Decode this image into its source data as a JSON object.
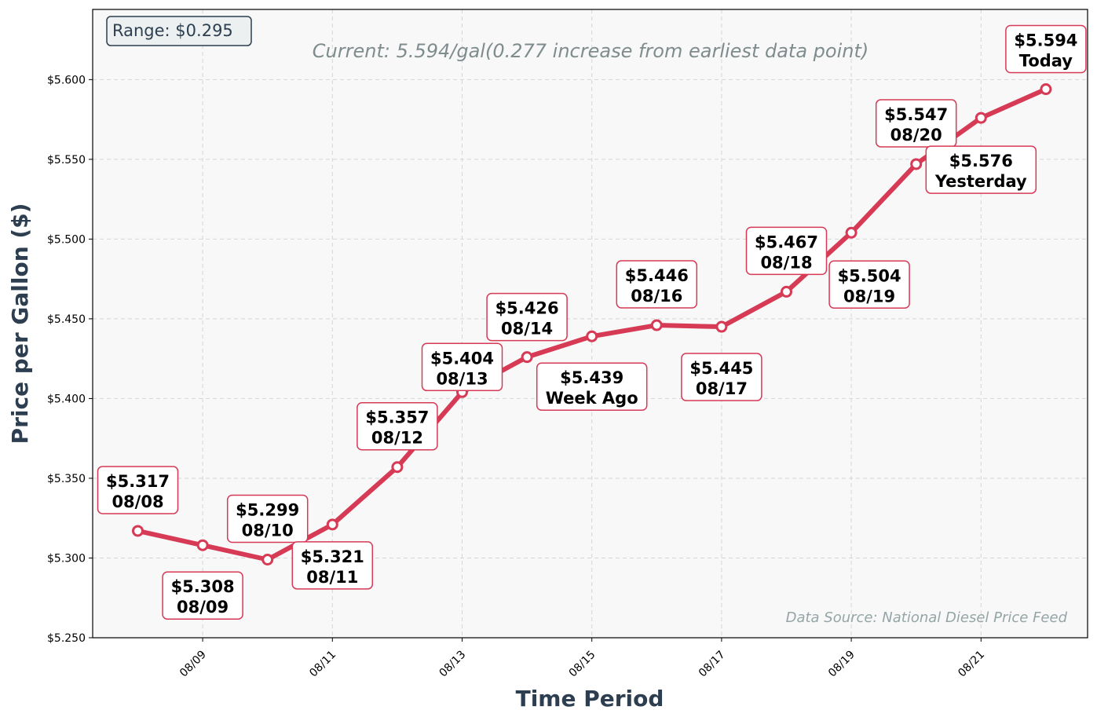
{
  "chart_data": {
    "type": "line",
    "title": "",
    "subtitle": "Current: 5.594/gal(0.277 increase from earliest data point)",
    "xlabel": "Time Period",
    "ylabel": "Price per Gallon ($)",
    "ylim": [
      5.25,
      5.644
    ],
    "yticks": [
      "$5.250",
      "$5.300",
      "$5.350",
      "$5.400",
      "$5.450",
      "$5.500",
      "$5.550",
      "$5.600"
    ],
    "xticks": [
      "08/09",
      "08/11",
      "08/13",
      "08/15",
      "08/17",
      "08/19",
      "08/21"
    ],
    "grid": true,
    "range_box": "Range: $0.295",
    "source_note": "Data Source: National Diesel Price Feed",
    "line_color": "#d63a55",
    "series": [
      {
        "x": [
          "08/08",
          "08/09",
          "08/10",
          "08/11",
          "08/12",
          "08/13",
          "08/14",
          "08/15",
          "08/16",
          "08/17",
          "08/18",
          "08/19",
          "08/20",
          "08/21",
          "08/22"
        ],
        "values": [
          5.317,
          5.308,
          5.299,
          5.321,
          5.357,
          5.404,
          5.426,
          5.439,
          5.446,
          5.445,
          5.467,
          5.504,
          5.547,
          5.576,
          5.594
        ]
      }
    ],
    "annotations": [
      {
        "price": "$5.317",
        "label": "08/08"
      },
      {
        "price": "$5.308",
        "label": "08/09"
      },
      {
        "price": "$5.299",
        "label": "08/10"
      },
      {
        "price": "$5.321",
        "label": "08/11"
      },
      {
        "price": "$5.357",
        "label": "08/12"
      },
      {
        "price": "$5.404",
        "label": "08/13"
      },
      {
        "price": "$5.426",
        "label": "08/14"
      },
      {
        "price": "$5.439",
        "label": "Week Ago"
      },
      {
        "price": "$5.446",
        "label": "08/16"
      },
      {
        "price": "$5.445",
        "label": "08/17"
      },
      {
        "price": "$5.467",
        "label": "08/18"
      },
      {
        "price": "$5.504",
        "label": "08/19"
      },
      {
        "price": "$5.547",
        "label": "08/20"
      },
      {
        "price": "$5.576",
        "label": "Yesterday"
      },
      {
        "price": "$5.594",
        "label": "Today"
      }
    ]
  }
}
